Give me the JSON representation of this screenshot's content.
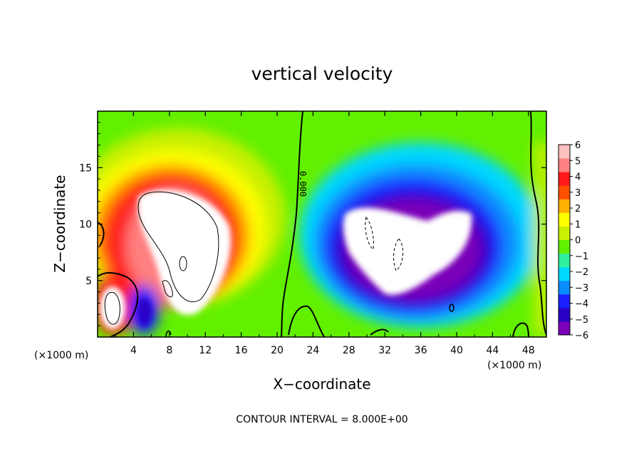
{
  "chart_data": {
    "type": "heatmap",
    "title": "vertical velocity",
    "xlabel": "X−coordinate",
    "ylabel": "Z−coordinate",
    "x_unit_label": "(×1000 m)",
    "x_unit_label_right": "(×1000 m)",
    "xlim": [
      0,
      50
    ],
    "ylim": [
      0,
      20
    ],
    "x_ticks": [
      {
        "value": 4,
        "label": "4"
      },
      {
        "value": 8,
        "label": "8"
      },
      {
        "value": 12,
        "label": "12"
      },
      {
        "value": 16,
        "label": "16"
      },
      {
        "value": 20,
        "label": "20"
      },
      {
        "value": 24,
        "label": "24"
      },
      {
        "value": 28,
        "label": "28"
      },
      {
        "value": 32,
        "label": "32"
      },
      {
        "value": 36,
        "label": "36"
      },
      {
        "value": 40,
        "label": "40"
      },
      {
        "value": 44,
        "label": "44"
      },
      {
        "value": 48,
        "label": "48"
      }
    ],
    "y_ticks": [
      {
        "value": 5,
        "label": "5"
      },
      {
        "value": 10,
        "label": "10"
      },
      {
        "value": 15,
        "label": "15"
      }
    ],
    "colorbar": {
      "range": [
        -6,
        6
      ],
      "ticks": [
        {
          "value": 6,
          "label": "6"
        },
        {
          "value": 5,
          "label": "5"
        },
        {
          "value": 4,
          "label": "4"
        },
        {
          "value": 3,
          "label": "3"
        },
        {
          "value": 2,
          "label": "2"
        },
        {
          "value": 1,
          "label": "1"
        },
        {
          "value": 0,
          "label": "0"
        },
        {
          "value": -1,
          "label": "−1"
        },
        {
          "value": -2,
          "label": "−2"
        },
        {
          "value": -3,
          "label": "−3"
        },
        {
          "value": -4,
          "label": "−4"
        },
        {
          "value": -5,
          "label": "−5"
        },
        {
          "value": -6,
          "label": "−6"
        }
      ],
      "colors": [
        "#7a00b8",
        "#2a00c8",
        "#1a20ff",
        "#0a8cff",
        "#00d8ff",
        "#30f0a0",
        "#5ef000",
        "#c8f000",
        "#ffff00",
        "#ffb000",
        "#ff5000",
        "#ff1a1a",
        "#ff8080",
        "#ffc0c0"
      ]
    },
    "contour_label": "0.000",
    "contour_interval_text": "CONTOUR INTERVAL = 8.000E+00"
  }
}
